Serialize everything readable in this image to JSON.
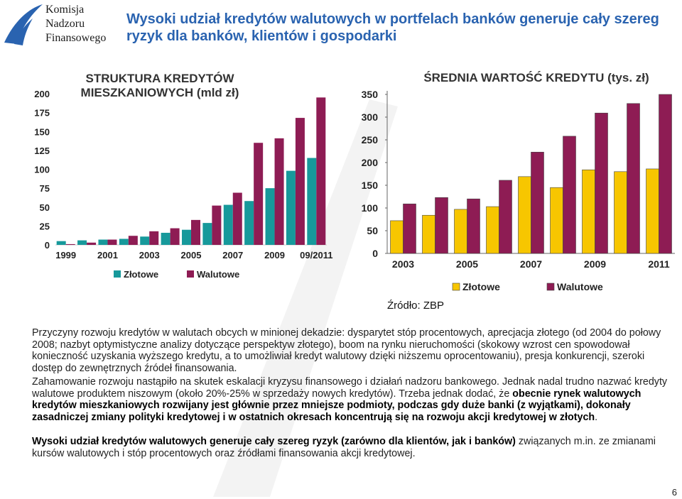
{
  "logo": [
    "Komisja",
    "Nadzoru",
    "Finansowego"
  ],
  "title": "Wysoki udział kredytów walutowych w portfelach banków generuje cały szereg ryzyk dla banków, klientów i gospodarki",
  "chart_data": [
    {
      "type": "bar",
      "title": "STRUKTURA KREDYTÓW MIESZKANIOWYCH (mld zł)",
      "categories": [
        "1999",
        null,
        "2001",
        null,
        "2003",
        null,
        "2005",
        null,
        "2007",
        null,
        "2009",
        null,
        "09/2011"
      ],
      "series": [
        {
          "name": "Złotowe",
          "color": "#17999b",
          "values": [
            5,
            6,
            7,
            8,
            11,
            16,
            20,
            29,
            53,
            58,
            75,
            98,
            115
          ]
        },
        {
          "name": "Walutowe",
          "color": "#8e1c54",
          "values": [
            1,
            3,
            7,
            12,
            18,
            22,
            33,
            52,
            69,
            135,
            141,
            168,
            195
          ]
        }
      ],
      "ylim": [
        0,
        200
      ],
      "yticks": [
        0,
        25,
        50,
        75,
        100,
        125,
        150,
        175,
        200
      ]
    },
    {
      "type": "bar",
      "title": "ŚREDNIA WARTOŚĆ KREDYTU (tys. zł)",
      "categories": [
        "2003",
        null,
        "2005",
        null,
        "2007",
        null,
        "2009",
        null,
        "2011"
      ],
      "series": [
        {
          "name": "Złotowe",
          "color": "#f7c600",
          "values": [
            72,
            84,
            97,
            103,
            169,
            145,
            184,
            180,
            186
          ]
        },
        {
          "name": "Walutowe",
          "color": "#8e1c54",
          "values": [
            109,
            123,
            120,
            161,
            223,
            258,
            309,
            330,
            350
          ]
        }
      ],
      "ylim": [
        0,
        350
      ],
      "yticks": [
        0,
        50,
        100,
        150,
        200,
        250,
        300,
        350
      ]
    }
  ],
  "source": "Źródło: ZBP",
  "paragraphs": [
    [
      {
        "text": "Przyczyny rozwoju kredytów w walutach obcych w minionej dekadzie: dysparytet stóp procentowych, aprecjacja złotego (od 2004 do połowy 2008; nazbyt optymistyczne analizy dotyczące perspektyw złotego), boom na rynku nieruchomości (skokowy wzrost cen spowodował konieczność uzyskania wyższego kredytu, a to umożliwiał kredyt walutowy dzięki niższemu oprocentowaniu), presja konkurencji, szeroki dostęp do zewnętrznych źródeł finansowania."
      }
    ],
    [
      {
        "text": "Zahamowanie rozwoju nastąpiło na skutek eskalacji kryzysu finansowego i działań nadzoru bankowego. Jednak nadal trudno nazwać kredyty walutowe produktem niszowym (około 20%-25% w sprzedaży nowych kredytów). Trzeba jednak dodać, że "
      },
      {
        "text": "obecnie rynek  walutowych kredytów mieszkaniowych rozwijany jest głównie przez mniejsze podmioty, podczas gdy duże banki (z wyjątkami), dokonały zasadniczej zmiany polityki kredytowej i w ostatnich okresach koncentrują się na rozwoju akcji kredytowej w złotych",
        "bold": true
      },
      {
        "text": "."
      }
    ],
    [
      {
        "text": "Wysoki udział kredytów walutowych generuje cały szereg ryzyk (zarówno dla klientów, jak i banków)",
        "bold": true
      },
      {
        "text": " związanych m.in. ze zmianami kursów walutowych i stóp procentowych oraz źródłami finansowania akcji kredytowej."
      }
    ]
  ],
  "page_number": "6"
}
